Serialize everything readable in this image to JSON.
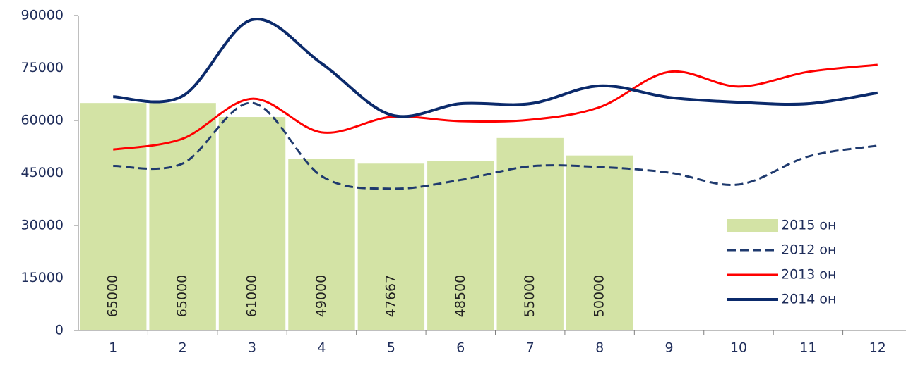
{
  "chart_data": {
    "type": "combo",
    "categories": [
      "1",
      "2",
      "3",
      "4",
      "5",
      "6",
      "7",
      "8",
      "9",
      "10",
      "11",
      "12"
    ],
    "ylim": [
      0,
      90000
    ],
    "yticks": [
      0,
      15000,
      30000,
      45000,
      60000,
      75000,
      90000
    ],
    "legend": "bottom-right",
    "series": [
      {
        "name": "2015 он",
        "type": "bar",
        "color": "#d3e3a5",
        "values": [
          65000,
          65000,
          61000,
          49000,
          47667,
          48500,
          55000,
          50000,
          null,
          null,
          null,
          null
        ]
      },
      {
        "name": "2012 он",
        "type": "line",
        "style": "dashed",
        "color": "#1f3a6e",
        "values": [
          47000,
          47700,
          65000,
          44100,
          40500,
          43000,
          46900,
          46700,
          45100,
          41700,
          49700,
          52800
        ]
      },
      {
        "name": "2013 он",
        "type": "line",
        "style": "solid",
        "color": "#ff0000",
        "values": [
          51700,
          54800,
          66200,
          56600,
          61000,
          59800,
          60200,
          63800,
          73900,
          69700,
          73900,
          75900
        ]
      },
      {
        "name": "2014 он",
        "type": "line",
        "style": "solid",
        "color": "#0b2a6b",
        "values": [
          66800,
          67000,
          88800,
          76300,
          61600,
          64800,
          64800,
          69900,
          66600,
          65200,
          64800,
          67900
        ]
      }
    ]
  }
}
